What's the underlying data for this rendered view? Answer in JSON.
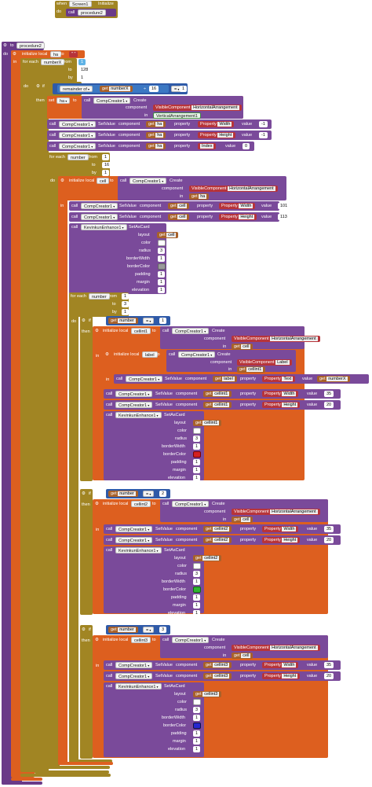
{
  "screen_init": {
    "when": "when",
    "screen": "Screen1",
    "event": "Initialize",
    "do": "do",
    "call": "call",
    "proc": "procedure2"
  },
  "proc_def": {
    "to": "to",
    "name": "procedure2",
    "do": "do"
  },
  "init_ha": {
    "label": "initialize local",
    "var": "ha",
    "to": "to",
    "value": "\" \"",
    "in": "in"
  },
  "for_x": {
    "label": "for each",
    "var": "numberX",
    "from": "from",
    "from_val": "1",
    "to": "to",
    "to_val": "128",
    "by": "by",
    "by_val": "1"
  },
  "if1": {
    "do": "do",
    "if": "if",
    "then": "then",
    "remainder": "remainder of",
    "get": "get",
    "var": "numberX",
    "div": "÷",
    "mod": "16",
    "eq": "=",
    "cmp": "1"
  },
  "set_ha": {
    "set": "set",
    "var": "ha",
    "to": "to",
    "call": "call",
    "comp": "CompCreator1",
    "method": "Create",
    "component": "component",
    "visible": "VisibleComponent",
    "vtype": "HorizontalArrangement",
    "in": "in",
    "arr": "VerticalArrangement1"
  },
  "sv1": {
    "call": "call",
    "comp": "CompCreator1",
    "method": "SetValue",
    "component": "component",
    "get": "get",
    "var": "ha",
    "property": "property",
    "prop_label": "Property",
    "prop": "Width",
    "value": "value",
    "val": "-1"
  },
  "sv2": {
    "prop": "Height",
    "val": "-1"
  },
  "sv3": {
    "prop": "Index",
    "val": "0"
  },
  "for_n": {
    "label": "for each",
    "var": "number",
    "from": "from",
    "from_val": "1",
    "to": "to",
    "to_val": "16",
    "by": "by",
    "by_val": "1"
  },
  "init_cell": {
    "do": "do",
    "label": "initialize local",
    "var": "cell",
    "to": "to",
    "call": "call",
    "comp": "CompCreator1",
    "method": "Create",
    "component": "component",
    "visible": "VisibleComponent",
    "vtype": "HorizontalArrangement",
    "in": "in",
    "get": "get",
    "gvar": "ha"
  },
  "cell_sv1": {
    "var": "cell",
    "prop": "Width",
    "val": "101"
  },
  "cell_sv2": {
    "var": "cell",
    "prop": "Height",
    "val": "113"
  },
  "card": {
    "call": "call",
    "comp": "KevinkunEnhance1",
    "method": "SetAsCard",
    "layout": "layout",
    "color": "color",
    "radius": "radius",
    "borderWidth": "borderWidth",
    "borderColor": "borderColor",
    "padding": "padding",
    "margin": "margin",
    "elevation": "elevation",
    "get": "get",
    "var": "cell",
    "radius_val": "3",
    "bw_val": "1",
    "pad_val": "1",
    "mar_val": "1",
    "elev_val": "1"
  },
  "for_n2": {
    "label": "for each",
    "var": "number",
    "from": "from",
    "from_val": "1",
    "to": "to",
    "to_val": "3",
    "by": "by",
    "by_val": "1"
  },
  "branch1": {
    "if": "if",
    "cmp_val": "1",
    "cell_var": "cellint1",
    "label_var": "label",
    "vtype2": "Label",
    "prop_text": "Text",
    "text_get": "numberX",
    "w": "35",
    "h": "20",
    "card_var": "cellint1",
    "radius": "3",
    "bw": "1",
    "bc": "#d42020"
  },
  "branch2": {
    "if": "if",
    "cmp_val": "2",
    "cell_var": "cellint2",
    "w": "35",
    "h": "20",
    "card_var": "cellint2",
    "radius": "3",
    "bw": "1",
    "bc": "#2fb52f"
  },
  "branch3": {
    "if": "if",
    "cmp_val": "3",
    "cell_var": "cellint3",
    "w": "35",
    "h": "20",
    "card_var": "cellint3",
    "radius": "3",
    "bw": "1",
    "bc": "#2727d0"
  }
}
